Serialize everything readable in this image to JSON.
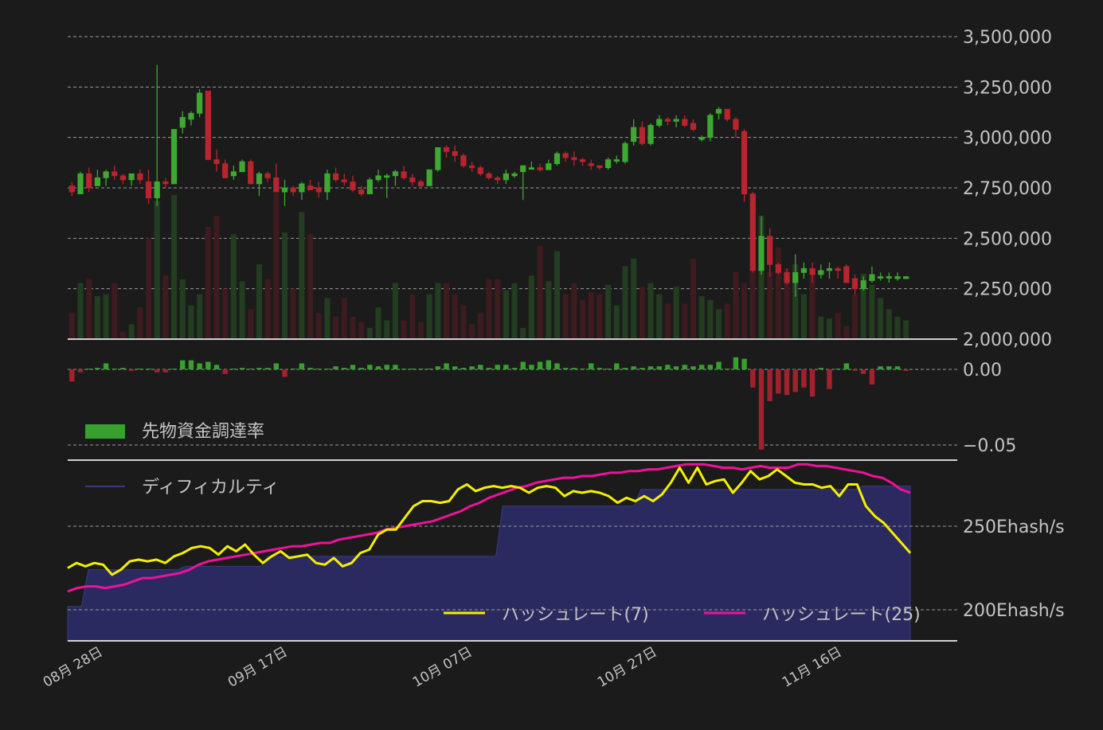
{
  "colors": {
    "background": "#1b1b1b",
    "up": "#3ea832",
    "down": "#b8252e",
    "vol_up": "#223d20",
    "vol_down": "#3d1b1f",
    "funding_up": "#38a02e",
    "funding_down": "#a1222d",
    "difficulty_fill": "#2b2a60",
    "difficulty_line": "#3a3a80",
    "hash7": "#f4f000",
    "hash25": "#f0119a",
    "grid": "#9a9a9a",
    "text": "#c4c4c4"
  },
  "price_panel": {
    "y_ticks": [
      "3,500,000",
      "3,250,000",
      "3,000,000",
      "2,750,000",
      "2,500,000",
      "2,250,000",
      "2,000,000"
    ],
    "y_values": [
      3500000,
      3250000,
      3000000,
      2750000,
      2500000,
      2250000,
      2000000
    ]
  },
  "funding_panel": {
    "y_ticks": [
      "0.00",
      "−0.05"
    ],
    "legend": "先物資金調達率"
  },
  "hash_panel": {
    "y_ticks": [
      "250Ehash/s",
      "200Ehash/s"
    ],
    "legend_difficulty": "ディフィカルティ",
    "legend_hash7": "ハッシュレート(7)",
    "legend_hash25": "ハッシュレート(25)"
  },
  "x_axis": {
    "date_labels": [
      "08月 28日",
      "09月 17日",
      "10月 07日",
      "10月 27日",
      "11月 16日"
    ]
  },
  "chart_data": [
    {
      "type": "candlestick",
      "title": "",
      "xlabel": "",
      "ylabel": "",
      "ylim": [
        2000000,
        3500000
      ],
      "x_tick_labels": [
        "08月 28日",
        "09月 17日",
        "10月 07日",
        "10月 27日",
        "11月 16日"
      ],
      "ohlc": [
        [
          2760000,
          2780000,
          2710000,
          2730000
        ],
        [
          2720000,
          2830000,
          2720000,
          2820000
        ],
        [
          2820000,
          2850000,
          2730000,
          2750000
        ],
        [
          2760000,
          2840000,
          2760000,
          2800000
        ],
        [
          2800000,
          2840000,
          2760000,
          2830000
        ],
        [
          2830000,
          2860000,
          2790000,
          2810000
        ],
        [
          2810000,
          2820000,
          2770000,
          2790000
        ],
        [
          2790000,
          2820000,
          2760000,
          2820000
        ],
        [
          2820000,
          2840000,
          2770000,
          2790000
        ],
        [
          2780000,
          2840000,
          2670000,
          2700000
        ],
        [
          2700000,
          3360000,
          2660000,
          2780000
        ],
        [
          2780000,
          2800000,
          2750000,
          2770000
        ],
        [
          2770000,
          3040000,
          2770000,
          3040000
        ],
        [
          3050000,
          3130000,
          3020000,
          3100000
        ],
        [
          3090000,
          3130000,
          3060000,
          3120000
        ],
        [
          3120000,
          3240000,
          3100000,
          3220000
        ],
        [
          3230000,
          3230000,
          2910000,
          2890000
        ],
        [
          2890000,
          2940000,
          2830000,
          2870000
        ],
        [
          2870000,
          2890000,
          2820000,
          2800000
        ],
        [
          2810000,
          2860000,
          2790000,
          2830000
        ],
        [
          2830000,
          2890000,
          2830000,
          2880000
        ],
        [
          2880000,
          2890000,
          2770000,
          2770000
        ],
        [
          2770000,
          2830000,
          2710000,
          2820000
        ],
        [
          2820000,
          2830000,
          2780000,
          2800000
        ],
        [
          2800000,
          2870000,
          2730000,
          2730000
        ],
        [
          2730000,
          2790000,
          2660000,
          2750000
        ],
        [
          2750000,
          2760000,
          2710000,
          2730000
        ],
        [
          2730000,
          2780000,
          2690000,
          2770000
        ],
        [
          2760000,
          2790000,
          2740000,
          2740000
        ],
        [
          2750000,
          2780000,
          2700000,
          2730000
        ],
        [
          2730000,
          2840000,
          2690000,
          2820000
        ],
        [
          2820000,
          2850000,
          2780000,
          2790000
        ],
        [
          2790000,
          2820000,
          2760000,
          2780000
        ],
        [
          2780000,
          2810000,
          2730000,
          2740000
        ],
        [
          2740000,
          2760000,
          2710000,
          2720000
        ],
        [
          2720000,
          2800000,
          2720000,
          2790000
        ],
        [
          2790000,
          2840000,
          2780000,
          2810000
        ],
        [
          2810000,
          2820000,
          2700000,
          2810000
        ],
        [
          2810000,
          2840000,
          2760000,
          2830000
        ],
        [
          2830000,
          2860000,
          2790000,
          2800000
        ],
        [
          2800000,
          2820000,
          2760000,
          2780000
        ],
        [
          2780000,
          2790000,
          2750000,
          2760000
        ],
        [
          2760000,
          2840000,
          2760000,
          2840000
        ],
        [
          2840000,
          2950000,
          2830000,
          2950000
        ],
        [
          2950000,
          2960000,
          2900000,
          2930000
        ],
        [
          2930000,
          2960000,
          2880000,
          2910000
        ],
        [
          2910000,
          2920000,
          2850000,
          2860000
        ],
        [
          2860000,
          2880000,
          2830000,
          2850000
        ],
        [
          2850000,
          2860000,
          2810000,
          2820000
        ],
        [
          2820000,
          2830000,
          2790000,
          2800000
        ],
        [
          2800000,
          2810000,
          2770000,
          2790000
        ],
        [
          2790000,
          2840000,
          2770000,
          2820000
        ],
        [
          2810000,
          2830000,
          2800000,
          2820000
        ],
        [
          2830000,
          2860000,
          2690000,
          2860000
        ],
        [
          2850000,
          2880000,
          2840000,
          2850000
        ],
        [
          2850000,
          2870000,
          2830000,
          2840000
        ],
        [
          2840000,
          2890000,
          2840000,
          2870000
        ],
        [
          2870000,
          2930000,
          2860000,
          2920000
        ],
        [
          2920000,
          2930000,
          2880000,
          2900000
        ],
        [
          2900000,
          2930000,
          2860000,
          2890000
        ],
        [
          2890000,
          2900000,
          2860000,
          2880000
        ],
        [
          2870000,
          2890000,
          2840000,
          2860000
        ],
        [
          2860000,
          2860000,
          2840000,
          2850000
        ],
        [
          2850000,
          2900000,
          2840000,
          2890000
        ],
        [
          2890000,
          2910000,
          2870000,
          2890000
        ],
        [
          2880000,
          2980000,
          2870000,
          2970000
        ],
        [
          2980000,
          3090000,
          2960000,
          3050000
        ],
        [
          3050000,
          3080000,
          2960000,
          2970000
        ],
        [
          2970000,
          3070000,
          2960000,
          3060000
        ],
        [
          3060000,
          3110000,
          3050000,
          3090000
        ],
        [
          3090000,
          3100000,
          3060000,
          3080000
        ],
        [
          3080000,
          3110000,
          3050000,
          3090000
        ],
        [
          3090000,
          3110000,
          3050000,
          3060000
        ],
        [
          3070000,
          3090000,
          3030000,
          3040000
        ],
        [
          2990000,
          3010000,
          2980000,
          3000000
        ],
        [
          3000000,
          3120000,
          2980000,
          3110000
        ],
        [
          3120000,
          3150000,
          3090000,
          3140000
        ],
        [
          3140000,
          3140000,
          3080000,
          3090000
        ],
        [
          3090000,
          3100000,
          3000000,
          3040000
        ],
        [
          3030000,
          3040000,
          2680000,
          2720000
        ],
        [
          2720000,
          2730000,
          2330000,
          2340000
        ],
        [
          2340000,
          2610000,
          2320000,
          2510000
        ],
        [
          2510000,
          2550000,
          2310000,
          2370000
        ],
        [
          2370000,
          2380000,
          2320000,
          2330000
        ],
        [
          2330000,
          2350000,
          2270000,
          2280000
        ],
        [
          2280000,
          2420000,
          2210000,
          2330000
        ],
        [
          2330000,
          2380000,
          2300000,
          2350000
        ],
        [
          2350000,
          2380000,
          2280000,
          2320000
        ],
        [
          2320000,
          2370000,
          2300000,
          2340000
        ],
        [
          2340000,
          2380000,
          2300000,
          2350000
        ],
        [
          2350000,
          2360000,
          2300000,
          2340000
        ],
        [
          2360000,
          2370000,
          2280000,
          2280000
        ],
        [
          2300000,
          2320000,
          2220000,
          2250000
        ],
        [
          2250000,
          2310000,
          2240000,
          2290000
        ],
        [
          2290000,
          2360000,
          2280000,
          2320000
        ],
        [
          2310000,
          2330000,
          2290000,
          2310000
        ],
        [
          2310000,
          2330000,
          2280000,
          2310000
        ],
        [
          2300000,
          2330000,
          2290000,
          2310000
        ],
        [
          2300000,
          2310000,
          2300000,
          2310000
        ]
      ],
      "volume": [
        14,
        30,
        32,
        23,
        24,
        30,
        4,
        8,
        17,
        54,
        74,
        34,
        77,
        32,
        18,
        24,
        60,
        66,
        27,
        56,
        31,
        16,
        40,
        32,
        78,
        57,
        27,
        68,
        56,
        14,
        22,
        12,
        22,
        12,
        9,
        6,
        17,
        10,
        30,
        10,
        24,
        9,
        24,
        30,
        30,
        24,
        18,
        8,
        14,
        32,
        32,
        26,
        30,
        6,
        34,
        50,
        31,
        47,
        24,
        30,
        21,
        25,
        24,
        29,
        18,
        39,
        43,
        28,
        30,
        24,
        19,
        28,
        19,
        43,
        23,
        21,
        16,
        19,
        36,
        30,
        52,
        66,
        36,
        49,
        38,
        40,
        24,
        36,
        12,
        11,
        14,
        7,
        24,
        35,
        29,
        22,
        16,
        12,
        10,
        5
      ],
      "funding_rate": [
        -0.008,
        -0.002,
        0.0,
        0.001,
        0.004,
        0.0,
        0.001,
        -0.001,
        0.0,
        0.0,
        -0.002,
        -0.002,
        0.0,
        0.006,
        0.006,
        0.004,
        0.005,
        0.003,
        -0.003,
        0.0,
        0.001,
        0.0,
        0.001,
        0.001,
        0.004,
        -0.005,
        0.0,
        0.004,
        0.001,
        0.0,
        0.0,
        0.002,
        0.001,
        0.003,
        0.001,
        0.003,
        0.002,
        0.003,
        0.003,
        0.0,
        0.0,
        0.0,
        0.0,
        0.002,
        0.004,
        0.002,
        0.001,
        0.002,
        0.003,
        0.001,
        0.003,
        0.003,
        0.001,
        0.005,
        0.003,
        0.005,
        0.006,
        0.004,
        0.001,
        0.001,
        0.0,
        0.004,
        0.001,
        0.0,
        0.004,
        0.001,
        0.002,
        0.001,
        0.002,
        0.002,
        0.003,
        0.002,
        0.003,
        0.002,
        0.003,
        0.003,
        0.005,
        0.0,
        0.008,
        0.007,
        -0.012,
        -0.053,
        -0.021,
        -0.016,
        -0.017,
        -0.015,
        -0.012,
        -0.018,
        0.001,
        -0.013,
        0.0,
        0.004,
        -0.001,
        -0.003,
        -0.01,
        0.002,
        0.002,
        0.002,
        -0.001,
        -0.001,
        -0.003
      ],
      "difficulty": [
        202,
        202,
        202,
        224,
        224,
        224,
        224,
        224,
        224,
        224,
        224,
        224,
        224,
        224,
        224,
        224,
        224,
        226,
        226,
        226,
        226,
        226,
        226,
        226,
        226,
        226,
        226,
        226,
        226,
        232,
        232,
        232,
        232,
        232,
        232,
        232,
        232,
        232,
        232,
        232,
        232,
        232,
        232,
        232,
        232,
        232,
        232,
        232,
        232,
        232,
        232,
        232,
        232,
        232,
        232,
        232,
        232,
        232,
        232,
        232,
        232,
        232,
        232,
        262,
        262,
        262,
        262,
        262,
        262,
        262,
        262,
        262,
        262,
        262,
        262,
        262,
        262,
        262,
        262,
        262,
        262,
        262,
        262,
        272,
        272,
        272,
        272,
        272,
        272,
        272,
        272,
        272,
        272,
        272,
        272,
        272,
        272,
        272,
        272,
        272,
        272,
        272,
        272,
        272,
        272,
        272,
        272,
        272,
        272,
        272,
        272,
        272,
        272,
        272,
        272,
        274,
        274,
        274,
        274,
        274,
        274,
        274,
        274
      ],
      "hashrate_7": [
        225,
        228,
        226,
        228,
        227,
        221,
        224,
        229,
        230,
        229,
        230,
        228,
        232,
        234,
        237,
        238,
        237,
        233,
        238,
        235,
        239,
        233,
        228,
        232,
        235,
        231,
        232,
        233,
        228,
        227,
        231,
        226,
        228,
        234,
        236,
        245,
        248,
        248,
        255,
        262,
        265,
        265,
        264,
        265,
        272,
        275,
        271,
        273,
        274,
        273,
        274,
        273,
        270,
        273,
        274,
        273,
        268,
        271,
        270,
        271,
        270,
        268,
        264,
        267,
        265,
        268,
        265,
        269,
        276,
        285,
        276,
        285,
        275,
        277,
        278,
        270,
        276,
        283,
        278,
        280,
        284,
        280,
        276,
        275,
        275,
        273,
        274,
        268,
        275,
        275,
        262,
        256,
        252,
        246,
        240,
        234
      ],
      "hashrate_25": [
        211,
        213,
        214,
        214,
        213,
        214,
        215,
        217,
        219,
        219,
        220,
        221,
        222,
        224,
        227,
        229,
        230,
        231,
        232,
        233,
        234,
        235,
        236,
        237,
        238,
        238,
        239,
        240,
        240,
        242,
        243,
        244,
        245,
        246,
        248,
        249,
        250,
        251,
        252,
        253,
        255,
        257,
        259,
        262,
        264,
        267,
        269,
        271,
        273,
        274,
        276,
        277,
        278,
        279,
        279,
        280,
        280,
        281,
        282,
        282,
        283,
        283,
        284,
        284,
        285,
        286,
        287,
        287,
        287,
        286,
        285,
        285,
        284,
        285,
        286,
        285,
        285,
        285,
        287,
        287,
        286,
        286,
        285,
        284,
        283,
        282,
        280,
        279,
        276,
        272,
        270
      ],
      "series_names": [
        "ディフィカルティ",
        "ハッシュレート(7)",
        "ハッシュレート(25)",
        "先物資金調達率"
      ]
    }
  ]
}
